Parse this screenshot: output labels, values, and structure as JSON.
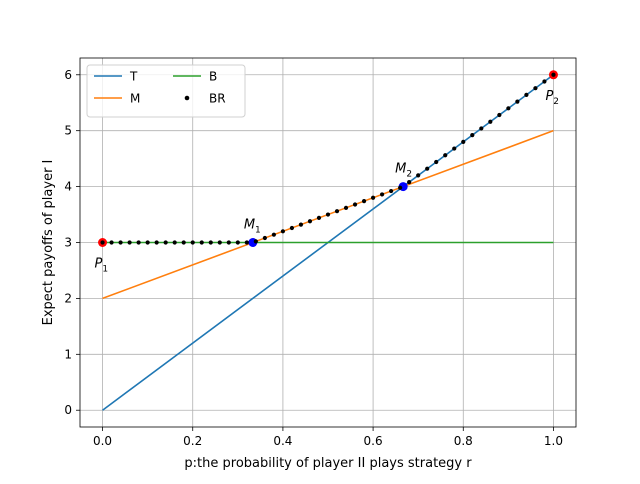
{
  "chart_data": {
    "type": "line",
    "xlabel": "p:the probability of player II plays strategy r",
    "ylabel": "Expect payoffs of player I",
    "xlim": [
      -0.05,
      1.05
    ],
    "ylim": [
      -0.3,
      6.3
    ],
    "xticks": [
      0.0,
      0.2,
      0.4,
      0.6,
      0.8,
      1.0
    ],
    "xtick_labels": [
      "0.0",
      "0.2",
      "0.4",
      "0.6",
      "0.8",
      "1.0"
    ],
    "yticks": [
      0,
      1,
      2,
      3,
      4,
      5,
      6
    ],
    "ytick_labels": [
      "0",
      "1",
      "2",
      "3",
      "4",
      "5",
      "6"
    ],
    "grid": true,
    "legend_position": "top-left",
    "legend_columns": 2,
    "series": [
      {
        "name": "T",
        "type": "line",
        "color": "#1f77b4",
        "x": [
          0,
          1
        ],
        "y": [
          0,
          6
        ]
      },
      {
        "name": "M",
        "type": "line",
        "color": "#ff7f0e",
        "x": [
          0,
          1
        ],
        "y": [
          2,
          5
        ]
      },
      {
        "name": "B",
        "type": "line",
        "color": "#2ca02c",
        "x": [
          0,
          1
        ],
        "y": [
          3,
          3
        ]
      },
      {
        "name": "BR",
        "type": "scatter",
        "color": "#000000",
        "x": [
          0.0,
          0.02,
          0.04,
          0.06,
          0.08,
          0.1,
          0.12,
          0.14,
          0.16,
          0.18,
          0.2,
          0.22,
          0.24,
          0.26,
          0.28,
          0.3,
          0.32,
          0.34,
          0.36,
          0.38,
          0.4,
          0.42,
          0.44,
          0.46,
          0.48,
          0.5,
          0.52,
          0.54,
          0.56,
          0.58,
          0.6,
          0.62,
          0.64,
          0.66,
          0.68,
          0.7,
          0.72,
          0.74,
          0.76,
          0.78,
          0.8,
          0.82,
          0.84,
          0.86,
          0.88,
          0.9,
          0.92,
          0.94,
          0.96,
          0.98,
          1.0
        ],
        "y": [
          3,
          3,
          3,
          3,
          3,
          3,
          3,
          3,
          3,
          3,
          3,
          3,
          3,
          3,
          3,
          3,
          3,
          3.02,
          3.08,
          3.14,
          3.2,
          3.26,
          3.32,
          3.38,
          3.44,
          3.5,
          3.56,
          3.62,
          3.68,
          3.74,
          3.8,
          3.86,
          3.92,
          3.98,
          4.08,
          4.2,
          4.32,
          4.44,
          4.56,
          4.68,
          4.8,
          4.92,
          5.04,
          5.16,
          5.28,
          5.4,
          5.52,
          5.64,
          5.76,
          5.88,
          6.0
        ]
      }
    ],
    "annotations": [
      {
        "label_main": "P",
        "label_sub": "1",
        "x": 0,
        "y": 3,
        "marker_color": "#ff0000"
      },
      {
        "label_main": "M",
        "label_sub": "1",
        "x": 0.3333,
        "y": 3,
        "marker_color": "#0000ff"
      },
      {
        "label_main": "M",
        "label_sub": "2",
        "x": 0.6667,
        "y": 4,
        "marker_color": "#0000ff"
      },
      {
        "label_main": "P",
        "label_sub": "2",
        "x": 1,
        "y": 6,
        "marker_color": "#ff0000"
      }
    ]
  }
}
